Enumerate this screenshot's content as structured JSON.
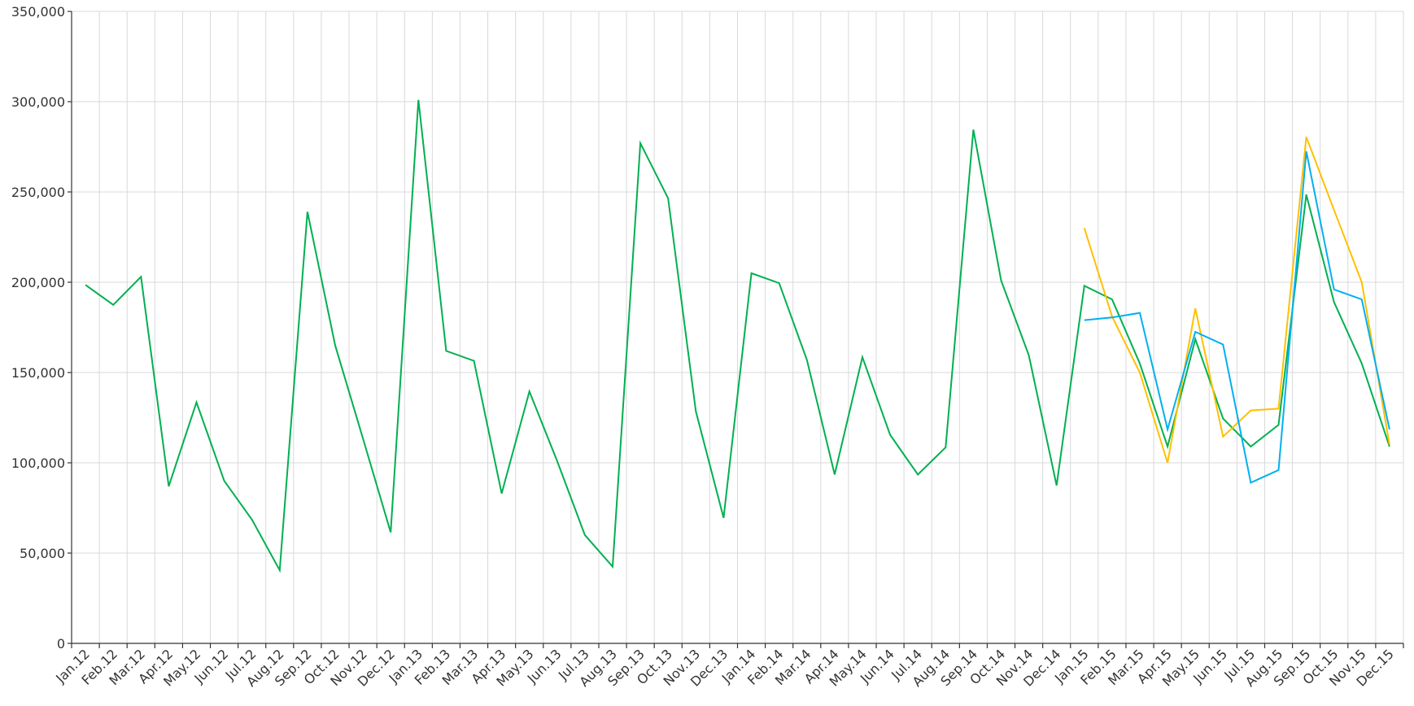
{
  "chart_data": {
    "type": "line",
    "title": "",
    "xlabel": "",
    "ylabel": "",
    "ylim": [
      0,
      350000
    ],
    "ytick_step": 50000,
    "grid": true,
    "categories": [
      "Jan.12",
      "Feb.12",
      "Mar.12",
      "Apr.12",
      "May.12",
      "Jun.12",
      "Jul.12",
      "Aug.12",
      "Sep.12",
      "Oct.12",
      "Nov.12",
      "Dec.12",
      "Jan.13",
      "Feb.13",
      "Mar.13",
      "Apr.13",
      "May.13",
      "Jun.13",
      "Jul.13",
      "Aug.13",
      "Sep.13",
      "Oct.13",
      "Nov.13",
      "Dec.13",
      "Jan.14",
      "Feb.14",
      "Mar.14",
      "Apr.14",
      "May.14",
      "Jun.14",
      "Jul.14",
      "Aug.14",
      "Sep.14",
      "Oct.14",
      "Nov.14",
      "Dec.14",
      "Jan.15",
      "Feb.15",
      "Mar.15",
      "Apr.15",
      "May.15",
      "Jun.15",
      "Jul.15",
      "Aug.15",
      "Sep.15",
      "Oct.15",
      "Nov.15",
      "Dec.15"
    ],
    "series": [
      {
        "color": "#00b050",
        "values": [
          198500,
          187500,
          203000,
          87000,
          133500,
          90000,
          68500,
          40500,
          239000,
          165000,
          113500,
          61500,
          301000,
          162000,
          156500,
          83000,
          139500,
          101000,
          60000,
          42500,
          277000,
          246500,
          128500,
          69500,
          205000,
          199500,
          157000,
          93500,
          158500,
          115500,
          93500,
          108500,
          284500,
          201000,
          159500,
          87500,
          198000,
          190500,
          155000,
          109000,
          168500,
          124500,
          109000,
          121000,
          248500,
          189000,
          155000,
          109000
        ]
      },
      {
        "color": "#ffc000",
        "values": [
          null,
          null,
          null,
          null,
          null,
          null,
          null,
          null,
          null,
          null,
          null,
          null,
          null,
          null,
          null,
          null,
          null,
          null,
          null,
          null,
          null,
          null,
          null,
          null,
          null,
          null,
          null,
          null,
          null,
          null,
          null,
          null,
          null,
          null,
          null,
          null,
          230000,
          181000,
          150000,
          100000,
          185500,
          114500,
          129000,
          130000,
          280500,
          240000,
          200000,
          110000
        ]
      },
      {
        "color": "#00b0f0",
        "values": [
          null,
          null,
          null,
          null,
          null,
          null,
          null,
          null,
          null,
          null,
          null,
          null,
          null,
          null,
          null,
          null,
          null,
          null,
          null,
          null,
          null,
          null,
          null,
          null,
          null,
          null,
          null,
          null,
          null,
          null,
          null,
          null,
          null,
          null,
          null,
          null,
          179000,
          180500,
          183000,
          118500,
          172500,
          165500,
          89000,
          96000,
          272500,
          196000,
          190500,
          118500
        ]
      }
    ]
  }
}
